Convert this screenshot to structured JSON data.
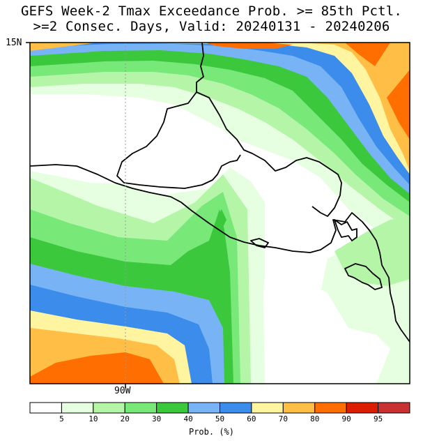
{
  "title": {
    "line1": "GEFS Week-2 Tmax Exceedance Prob. >= 85th Pctl.",
    "line2": ">=2 Consec. Days, Valid: 20240131 - 20240206"
  },
  "map": {
    "lat_label": "15N",
    "lon_label": "90W",
    "region": "Central America (Guatemala, El Salvador, Honduras, Nicaragua Pacific coast)"
  },
  "colorbar": {
    "title": "Prob. (%)",
    "tick_labels": [
      "5",
      "10",
      "20",
      "30",
      "40",
      "50",
      "60",
      "70",
      "80",
      "90",
      "95"
    ],
    "colors": [
      "#ffffff",
      "#e6ffe0",
      "#b4f5a8",
      "#78e878",
      "#3cc83c",
      "#78b4f5",
      "#3c8ceb",
      "#fff5a0",
      "#ffbe46",
      "#ff6e00",
      "#dc1e00",
      "#c83232"
    ]
  }
}
